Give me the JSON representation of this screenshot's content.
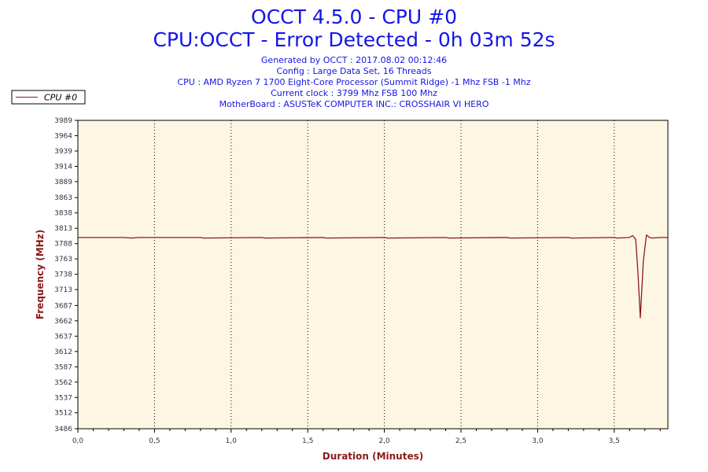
{
  "header": {
    "title": "OCCT 4.5.0 - CPU #0",
    "subtitle": "CPU:OCCT - Error Detected - 0h 03m 52s",
    "info": [
      "Generated by OCCT : 2017.08.02 00:12:46",
      "Config : Large Data Set, 16 Threads",
      "CPU : AMD Ryzen 7 1700 Eight-Core Processor (Summit Ridge) -1 Mhz FSB -1 Mhz",
      "Current clock : 3799 Mhz FSB 100 Mhz",
      "MotherBoard : ASUSTeK COMPUTER INC.: CROSSHAIR VI HERO"
    ]
  },
  "colors": {
    "plot_background": "#fdf6e3",
    "series_line": "#8b1a1a",
    "title_text": "#1515e6",
    "axis_title": "#8b1a1a"
  },
  "chart_data": {
    "type": "line",
    "xlabel": "Duration (Minutes)",
    "ylabel": "Frequency (MHz)",
    "xlim": [
      0,
      3.85
    ],
    "ylim": [
      3486,
      3989
    ],
    "x_ticks": [
      "0,0",
      "0,5",
      "1,0",
      "1,5",
      "2,0",
      "2,5",
      "3,0",
      "3,5"
    ],
    "y_ticks": [
      "3486",
      "3512",
      "3537",
      "3562",
      "3587",
      "3612",
      "3637",
      "3662",
      "3687",
      "3713",
      "3738",
      "3763",
      "3788",
      "3813",
      "3838",
      "3863",
      "3889",
      "3914",
      "3939",
      "3964",
      "3989"
    ],
    "vertical_grid": "dotted",
    "horizontal_grid": false,
    "legend_position": "top-left",
    "series": [
      {
        "name": "CPU #0",
        "x": [
          0.0,
          0.3,
          0.35,
          0.4,
          0.8,
          0.82,
          1.2,
          1.22,
          1.6,
          1.62,
          2.0,
          2.02,
          2.4,
          2.42,
          2.8,
          2.82,
          3.2,
          3.22,
          3.5,
          3.52,
          3.6,
          3.62,
          3.64,
          3.655,
          3.67,
          3.69,
          3.71,
          3.73,
          3.75,
          3.8,
          3.85
        ],
        "y": [
          3798,
          3798,
          3797,
          3798,
          3798,
          3797,
          3798,
          3797,
          3798,
          3797,
          3798,
          3797,
          3798,
          3797,
          3798,
          3797,
          3798,
          3797,
          3798,
          3797,
          3798,
          3801,
          3795,
          3740,
          3667,
          3760,
          3802,
          3798,
          3797,
          3798,
          3798
        ]
      }
    ]
  }
}
